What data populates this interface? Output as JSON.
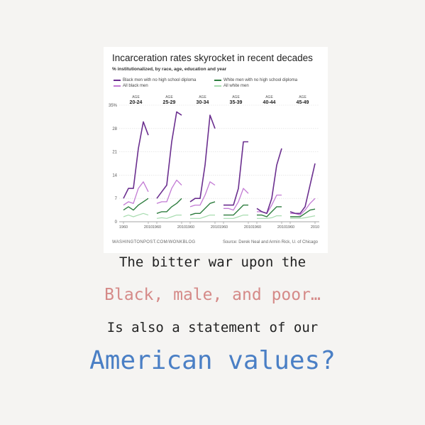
{
  "chart_data": {
    "type": "line",
    "title": "Incarceration rates skyrocket in recent decades",
    "subtitle": "% institutionalized, by race, age, education and year",
    "legend": [
      {
        "name": "Black men with no high school diploma",
        "color": "#6b2f8f"
      },
      {
        "name": "White men with no high school diploma",
        "color": "#2e7d3f"
      },
      {
        "name": "All black men",
        "color": "#c27ad4"
      },
      {
        "name": "All white men",
        "color": "#a8dcb0"
      }
    ],
    "legend_placement": "top",
    "ylim": [
      0,
      35
    ],
    "yticks": [
      "0",
      "7",
      "14",
      "21",
      "28",
      "35%"
    ],
    "grid": true,
    "x_points": [
      1960,
      1970,
      1980,
      1990,
      2000,
      2010
    ],
    "x_tick_labels": [
      "1960",
      "2010"
    ],
    "panel_label_prefix": "AGE",
    "panels": [
      {
        "age": "20-24",
        "series": [
          {
            "name": "Black men with no high school diploma",
            "values": [
              7,
              10,
              10,
              22,
              30,
              26
            ]
          },
          {
            "name": "All black men",
            "values": [
              5,
              6,
              5.5,
              10,
              12,
              9
            ]
          },
          {
            "name": "White men with no high school diploma",
            "values": [
              3.5,
              4.5,
              3.5,
              5,
              6,
              7
            ]
          },
          {
            "name": "All white men",
            "values": [
              1.5,
              2,
              1.5,
              2,
              2.5,
              2
            ]
          }
        ]
      },
      {
        "age": "25-29",
        "series": [
          {
            "name": "Black men with no high school diploma",
            "values": [
              7,
              9,
              11,
              24,
              33,
              32
            ]
          },
          {
            "name": "All black men",
            "values": [
              5.5,
              6,
              6,
              10,
              12.5,
              11
            ]
          },
          {
            "name": "White men with no high school diploma",
            "values": [
              2.5,
              3,
              3,
              4.5,
              5.5,
              7
            ]
          },
          {
            "name": "All white men",
            "values": [
              1,
              1.2,
              1,
              1.5,
              2,
              2
            ]
          }
        ]
      },
      {
        "age": "30-34",
        "series": [
          {
            "name": "Black men with no high school diploma",
            "values": [
              6,
              7,
              7,
              17,
              32,
              28
            ]
          },
          {
            "name": "All black men",
            "values": [
              4.5,
              5,
              5,
              8,
              12,
              11
            ]
          },
          {
            "name": "White men with no high school diploma",
            "values": [
              2,
              2.5,
              2.5,
              4,
              5.5,
              6
            ]
          },
          {
            "name": "All white men",
            "values": [
              1,
              1,
              1,
              1.5,
              2,
              2
            ]
          }
        ]
      },
      {
        "age": "35-39",
        "series": [
          {
            "name": "Black men with no high school diploma",
            "values": [
              5,
              5,
              5,
              10,
              24,
              24
            ]
          },
          {
            "name": "All black men",
            "values": [
              4,
              4,
              3.5,
              6,
              10,
              8.5
            ]
          },
          {
            "name": "White men with no high school diploma",
            "values": [
              2,
              2,
              2,
              3.5,
              5,
              5
            ]
          },
          {
            "name": "All white men",
            "values": [
              1,
              1,
              1,
              1.5,
              2,
              2
            ]
          }
        ]
      },
      {
        "age": "40-44",
        "series": [
          {
            "name": "Black men with no high school diploma",
            "values": [
              4,
              3,
              2.5,
              7,
              17,
              22
            ]
          },
          {
            "name": "All black men",
            "values": [
              3,
              3,
              2.5,
              5,
              8,
              8
            ]
          },
          {
            "name": "White men with no high school diploma",
            "values": [
              2,
              2,
              1.5,
              3,
              4.5,
              4.5
            ]
          },
          {
            "name": "All white men",
            "values": [
              1,
              1,
              1,
              1.2,
              1.8,
              1.8
            ]
          }
        ]
      },
      {
        "age": "45-49",
        "series": [
          {
            "name": "Black men with no high school diploma",
            "values": [
              3,
              2.5,
              2.5,
              4.5,
              11,
              17.5
            ]
          },
          {
            "name": "All black men",
            "values": [
              2.5,
              2.5,
              2,
              3.5,
              5.5,
              7
            ]
          },
          {
            "name": "White men with no high school diploma",
            "values": [
              1.5,
              1.5,
              1.5,
              2.5,
              3.5,
              3.8
            ]
          },
          {
            "name": "All white men",
            "values": [
              1,
              1,
              1,
              1.2,
              1.5,
              1.8
            ]
          }
        ]
      }
    ],
    "footer_left": "WASHINGTONPOST.COM/WONKBLOG",
    "footer_right": "Source: Derek Neal and Armin Rick, U. of Chicago"
  },
  "captions": {
    "line1": "The bitter war upon the",
    "line2": "Black, male, and poor…",
    "line3": "Is also a statement of our",
    "line4": "American values?"
  }
}
